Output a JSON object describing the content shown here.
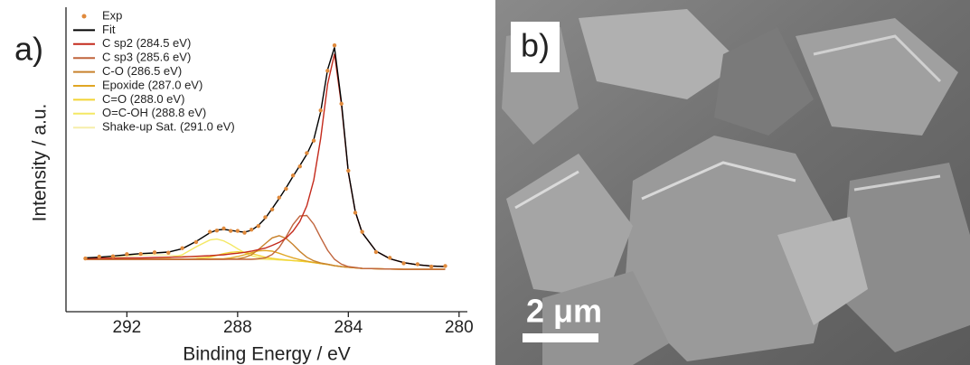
{
  "panel_labels": [
    "a)",
    "b)"
  ],
  "scale_bar": {
    "label": "2 μm"
  },
  "chart_data": {
    "type": "line",
    "xlabel": "Binding Energy / eV",
    "ylabel": "Intensity / a.u.",
    "xlim": [
      294.2,
      279.7
    ],
    "xticks": [
      292,
      288,
      284,
      280
    ],
    "ylim": [
      0,
      100
    ],
    "legend": "upper left",
    "x": [
      293.5,
      293,
      292.5,
      292,
      291.5,
      291,
      290.5,
      290,
      289.5,
      289,
      288.75,
      288.5,
      288.25,
      288,
      287.75,
      287.5,
      287.25,
      287,
      286.75,
      286.5,
      286.25,
      286,
      285.75,
      285.5,
      285.25,
      285,
      284.75,
      284.5,
      284.25,
      284,
      283.75,
      283.5,
      283,
      282.5,
      282,
      281.5,
      281,
      280.5
    ],
    "series": [
      {
        "name": "Exp",
        "color": "#e08a3c",
        "mode": "markers",
        "values": [
          17.6,
          18.2,
          18.3,
          19.0,
          19.1,
          19.6,
          19.5,
          21.0,
          23.0,
          26.4,
          26.8,
          27.5,
          26.7,
          26.7,
          26.1,
          27.1,
          28.3,
          31.2,
          33.8,
          37.7,
          40.6,
          45.0,
          48.0,
          52.4,
          56.5,
          66.5,
          79.6,
          88.0,
          68.7,
          46.6,
          32.7,
          26.4,
          19.7,
          17.8,
          16.0,
          15.7,
          14.9,
          15.1
        ]
      },
      {
        "name": "Fit",
        "color": "#000000",
        "mode": "line",
        "values": [
          17.8,
          18.0,
          18.4,
          18.8,
          19.2,
          19.4,
          19.7,
          20.8,
          23.2,
          26.1,
          27.0,
          27.2,
          26.9,
          26.5,
          26.3,
          26.9,
          28.5,
          30.9,
          34.1,
          37.4,
          40.9,
          44.7,
          48.3,
          52.0,
          56.9,
          66.0,
          80.0,
          87.3,
          69.2,
          46.2,
          33.1,
          26.1,
          20.0,
          17.5,
          16.2,
          15.5,
          15.1,
          14.9
        ]
      },
      {
        "name": "C sp2 (284.5 eV)",
        "color": "#c42a1c",
        "mode": "line",
        "values": [
          17.6,
          17.7,
          17.7,
          17.8,
          17.8,
          17.9,
          18.0,
          18.1,
          18.3,
          18.5,
          18.7,
          18.8,
          19.1,
          19.3,
          19.6,
          20.0,
          20.5,
          21.0,
          21.9,
          22.9,
          24.3,
          26.6,
          29.8,
          35.0,
          43.5,
          57.2,
          75.2,
          85.2,
          68.4,
          46.0,
          33.0,
          26.1,
          20.0,
          17.5,
          16.2,
          15.5,
          15.1,
          14.9
        ]
      },
      {
        "name": "C sp3 (285.6 eV)",
        "color": "#c0643c",
        "mode": "line",
        "values": [
          17.3,
          17.3,
          17.3,
          17.3,
          17.3,
          17.3,
          17.3,
          17.3,
          17.3,
          17.3,
          17.3,
          17.3,
          17.3,
          17.3,
          17.3,
          17.3,
          17.5,
          17.8,
          18.9,
          21.2,
          24.7,
          28.8,
          31.6,
          31.8,
          28.9,
          24.5,
          20.3,
          17.3,
          15.7,
          14.9,
          14.6,
          14.3,
          14.2,
          14.1,
          14.0,
          14.0,
          14.0,
          14.0
        ]
      },
      {
        "name": "C-O (286.5 eV)",
        "color": "#c8822c",
        "mode": "line",
        "values": [
          17.3,
          17.3,
          17.3,
          17.3,
          17.3,
          17.3,
          17.3,
          17.3,
          17.3,
          17.3,
          17.3,
          17.3,
          17.4,
          17.5,
          17.9,
          18.8,
          20.5,
          22.5,
          24.4,
          25.1,
          24.2,
          22.2,
          19.9,
          18.0,
          16.8,
          16.1,
          15.7,
          15.2,
          14.9,
          14.7,
          14.5,
          14.3,
          14.2,
          14.1,
          14.0,
          14.0,
          14.0,
          14.0
        ]
      },
      {
        "name": "Epoxide (287.0 eV)",
        "color": "#e0a624",
        "mode": "line",
        "values": [
          17.3,
          17.3,
          17.3,
          17.3,
          17.3,
          17.3,
          17.3,
          17.3,
          17.3,
          17.3,
          17.4,
          17.5,
          17.8,
          18.2,
          18.8,
          19.5,
          20.1,
          20.2,
          20.0,
          19.3,
          18.5,
          17.8,
          17.2,
          16.7,
          16.3,
          15.9,
          15.6,
          15.2,
          14.9,
          14.7,
          14.5,
          14.3,
          14.2,
          14.1,
          14.0,
          14.0,
          14.0,
          14.0
        ]
      },
      {
        "name": "C=O (288.0 eV)",
        "color": "#f2d434",
        "mode": "line",
        "values": [
          17.3,
          17.3,
          17.3,
          17.3,
          17.3,
          17.3,
          17.3,
          17.3,
          17.5,
          18.1,
          18.6,
          19.2,
          19.6,
          19.8,
          19.6,
          19.2,
          18.6,
          18.0,
          17.6,
          17.3,
          17.1,
          16.9,
          16.7,
          16.5,
          16.2,
          15.9,
          15.6,
          15.2,
          14.9,
          14.7,
          14.5,
          14.3,
          14.2,
          14.1,
          14.0,
          14.0,
          14.0,
          14.0
        ]
      },
      {
        "name": "O=C-OH (288.8 eV)",
        "color": "#f4e864",
        "mode": "line",
        "values": [
          17.3,
          17.3,
          17.3,
          17.3,
          17.3,
          17.4,
          17.7,
          18.8,
          21.4,
          23.7,
          24.0,
          23.4,
          22.2,
          20.8,
          19.5,
          18.5,
          17.9,
          17.5,
          17.3,
          17.1,
          17.0,
          16.9,
          16.7,
          16.5,
          16.2,
          15.9,
          15.6,
          15.2,
          14.9,
          14.7,
          14.5,
          14.3,
          14.2,
          14.1,
          14.0,
          14.0,
          14.0,
          14.0
        ]
      },
      {
        "name": "Shake-up Sat. (291.0 eV)",
        "color": "#f6eeaa",
        "mode": "line",
        "values": [
          17.5,
          17.7,
          18.0,
          18.4,
          18.7,
          18.8,
          18.7,
          18.4,
          18.0,
          17.7,
          17.6,
          17.5,
          17.4,
          17.4,
          17.3,
          17.3,
          17.3,
          17.2,
          17.2,
          17.1,
          17.0,
          16.9,
          16.7,
          16.5,
          16.2,
          15.9,
          15.6,
          15.2,
          14.9,
          14.7,
          14.5,
          14.3,
          14.2,
          14.1,
          14.0,
          14.0,
          14.0,
          14.0
        ]
      }
    ]
  }
}
